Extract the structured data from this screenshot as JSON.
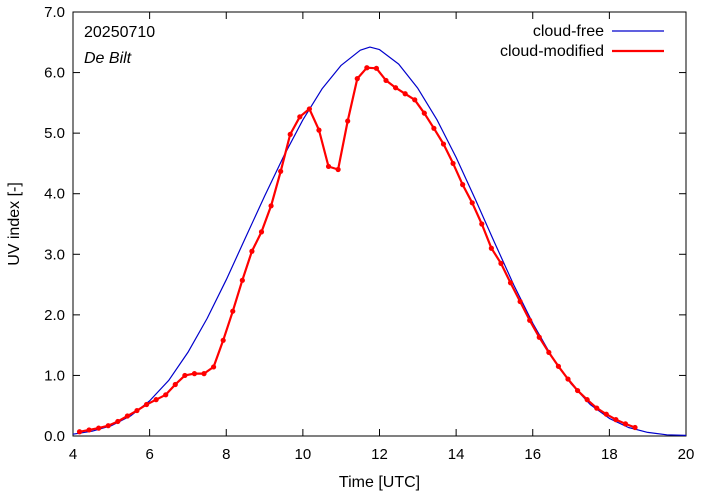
{
  "chart_data": {
    "type": "line",
    "annotations": {
      "date": "20250710",
      "station": "De Bilt"
    },
    "xlabel": "Time  [UTC]",
    "ylabel": "UV index  [-]",
    "xlim": [
      4,
      20
    ],
    "ylim": [
      0,
      7
    ],
    "x_ticks": [
      4,
      6,
      8,
      10,
      12,
      14,
      16,
      18,
      20
    ],
    "y_ticks": [
      0.0,
      1.0,
      2.0,
      3.0,
      4.0,
      5.0,
      6.0,
      7.0
    ],
    "grid": false,
    "legend_position": "top-right",
    "series": [
      {
        "name": "cloud-free",
        "color": "#0000cc",
        "style": "line",
        "x": [
          4.0,
          4.5,
          5.0,
          5.5,
          6.0,
          6.5,
          7.0,
          7.5,
          8.0,
          8.5,
          9.0,
          9.5,
          10.0,
          10.5,
          11.0,
          11.5,
          11.75,
          12.0,
          12.5,
          13.0,
          13.5,
          14.0,
          14.5,
          15.0,
          15.5,
          16.0,
          16.5,
          17.0,
          17.5,
          18.0,
          18.5,
          19.0,
          19.5,
          20.0
        ],
        "y": [
          0.03,
          0.08,
          0.17,
          0.33,
          0.58,
          0.92,
          1.38,
          1.94,
          2.58,
          3.27,
          3.96,
          4.62,
          5.22,
          5.73,
          6.12,
          6.37,
          6.42,
          6.38,
          6.14,
          5.74,
          5.22,
          4.6,
          3.91,
          3.2,
          2.5,
          1.86,
          1.31,
          0.86,
          0.52,
          0.29,
          0.14,
          0.06,
          0.02,
          0.01
        ]
      },
      {
        "name": "cloud-modified",
        "color": "#ff0000",
        "style": "line+points",
        "x": [
          4.17,
          4.42,
          4.67,
          4.92,
          5.17,
          5.42,
          5.67,
          5.92,
          6.17,
          6.42,
          6.67,
          6.92,
          7.17,
          7.42,
          7.67,
          7.92,
          8.17,
          8.42,
          8.67,
          8.92,
          9.17,
          9.42,
          9.67,
          9.92,
          10.17,
          10.42,
          10.67,
          10.92,
          11.17,
          11.42,
          11.67,
          11.92,
          12.17,
          12.42,
          12.67,
          12.92,
          13.17,
          13.42,
          13.67,
          13.92,
          14.17,
          14.42,
          14.67,
          14.92,
          15.17,
          15.42,
          15.67,
          15.92,
          16.17,
          16.42,
          16.67,
          16.92,
          17.17,
          17.42,
          17.67,
          17.92,
          18.17,
          18.42,
          18.67
        ],
        "y": [
          0.07,
          0.1,
          0.13,
          0.17,
          0.24,
          0.33,
          0.42,
          0.52,
          0.6,
          0.68,
          0.85,
          1.0,
          1.03,
          1.03,
          1.14,
          1.58,
          2.06,
          2.57,
          3.05,
          3.37,
          3.8,
          4.37,
          4.98,
          5.27,
          5.4,
          5.05,
          4.45,
          4.4,
          5.2,
          5.9,
          6.08,
          6.07,
          5.87,
          5.75,
          5.65,
          5.55,
          5.33,
          5.08,
          4.82,
          4.5,
          4.15,
          3.85,
          3.5,
          3.1,
          2.85,
          2.53,
          2.22,
          1.91,
          1.63,
          1.38,
          1.15,
          0.94,
          0.75,
          0.6,
          0.46,
          0.36,
          0.27,
          0.2,
          0.14
        ]
      }
    ]
  }
}
